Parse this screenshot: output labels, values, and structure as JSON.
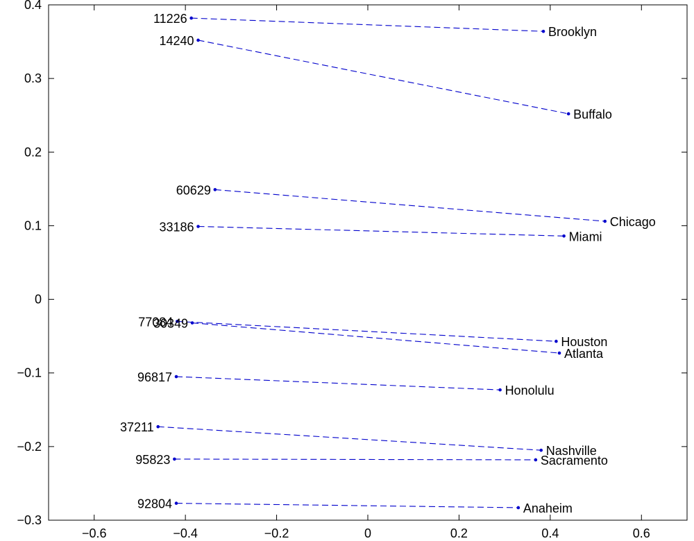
{
  "chart_data": {
    "type": "scatter",
    "title": "",
    "xlabel": "",
    "ylabel": "",
    "xlim": [
      -0.7,
      0.7
    ],
    "ylim": [
      -0.3,
      0.4
    ],
    "xticks": [
      -0.6,
      -0.4,
      -0.2,
      0,
      0.2,
      0.4,
      0.6
    ],
    "yticks": [
      -0.3,
      -0.2,
      -0.1,
      0,
      0.1,
      0.2,
      0.3,
      0.4
    ],
    "xtick_labels": [
      "−0.6",
      "−0.4",
      "−0.2",
      "0",
      "0.2",
      "0.4",
      "0.6"
    ],
    "ytick_labels": [
      "−0.3",
      "−0.2",
      "−0.1",
      "0",
      "0.1",
      "0.2",
      "0.3",
      "0.4"
    ],
    "grid": false,
    "line_color": "#0000cc",
    "line_style": "dashed",
    "pairs": [
      {
        "zip": "11226",
        "zip_xy": [
          -0.387,
          0.382
        ],
        "city": "Brooklyn",
        "city_xy": [
          0.385,
          0.364
        ]
      },
      {
        "zip": "14240",
        "zip_xy": [
          -0.372,
          0.352
        ],
        "city": "Buffalo",
        "city_xy": [
          0.44,
          0.252
        ]
      },
      {
        "zip": "60629",
        "zip_xy": [
          -0.335,
          0.149
        ],
        "city": "Chicago",
        "city_xy": [
          0.52,
          0.106
        ]
      },
      {
        "zip": "33186",
        "zip_xy": [
          -0.372,
          0.099
        ],
        "city": "Miami",
        "city_xy": [
          0.43,
          0.086
        ]
      },
      {
        "zip": "77084",
        "zip_xy": [
          -0.418,
          -0.03
        ],
        "city": "Houston",
        "city_xy": [
          0.413,
          -0.057
        ]
      },
      {
        "zip": "30349",
        "zip_xy": [
          -0.385,
          -0.032
        ],
        "city": "Atlanta",
        "city_xy": [
          0.42,
          -0.073
        ]
      },
      {
        "zip": "96817",
        "zip_xy": [
          -0.42,
          -0.105
        ],
        "city": "Honolulu",
        "city_xy": [
          0.29,
          -0.123
        ]
      },
      {
        "zip": "37211",
        "zip_xy": [
          -0.46,
          -0.173
        ],
        "city": "Nashville",
        "city_xy": [
          0.38,
          -0.205
        ]
      },
      {
        "zip": "95823",
        "zip_xy": [
          -0.424,
          -0.217
        ],
        "city": "Sacramento",
        "city_xy": [
          0.368,
          -0.218
        ]
      },
      {
        "zip": "92804",
        "zip_xy": [
          -0.42,
          -0.277
        ],
        "city": "Anaheim",
        "city_xy": [
          0.33,
          -0.283
        ]
      }
    ]
  }
}
